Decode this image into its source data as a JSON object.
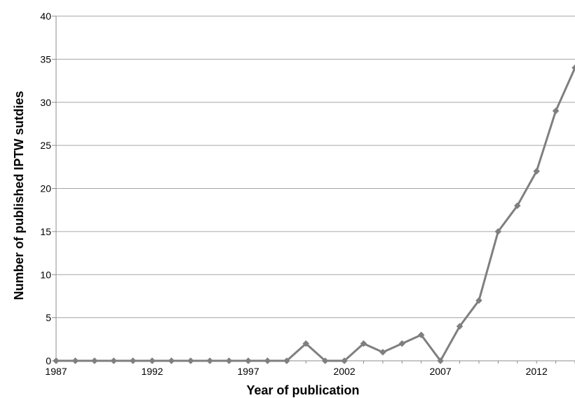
{
  "chart_data": {
    "type": "line",
    "title": "",
    "xlabel": "Year of publication",
    "ylabel": "Number of published IPTW sutdies",
    "x": [
      1987,
      1988,
      1989,
      1990,
      1991,
      1992,
      1993,
      1994,
      1995,
      1996,
      1997,
      1998,
      1999,
      2000,
      2001,
      2002,
      2003,
      2004,
      2005,
      2006,
      2007,
      2008,
      2009,
      2010,
      2011,
      2012,
      2013,
      2014
    ],
    "series": [
      {
        "values": [
          0,
          0,
          0,
          0,
          0,
          0,
          0,
          0,
          0,
          0,
          0,
          0,
          0,
          2,
          0,
          0,
          2,
          1,
          2,
          3,
          0,
          4,
          7,
          15,
          18,
          22,
          29,
          34
        ],
        "color": "#7f7f7f",
        "marker": "diamond"
      }
    ],
    "xticks": [
      1987,
      1992,
      1997,
      2002,
      2007,
      2012
    ],
    "xtick_labels": [
      "1987",
      "1992",
      "1997",
      "2002",
      "2007",
      "2012"
    ],
    "xlim": [
      1987,
      2014
    ],
    "ylim": [
      0,
      40
    ],
    "yticks": [
      0,
      5,
      10,
      15,
      20,
      25,
      30,
      35,
      40
    ],
    "ytick_labels": [
      "0",
      "5",
      "10",
      "15",
      "20",
      "25",
      "30",
      "35",
      "40"
    ],
    "grid": "horizontal",
    "legend": "none"
  }
}
